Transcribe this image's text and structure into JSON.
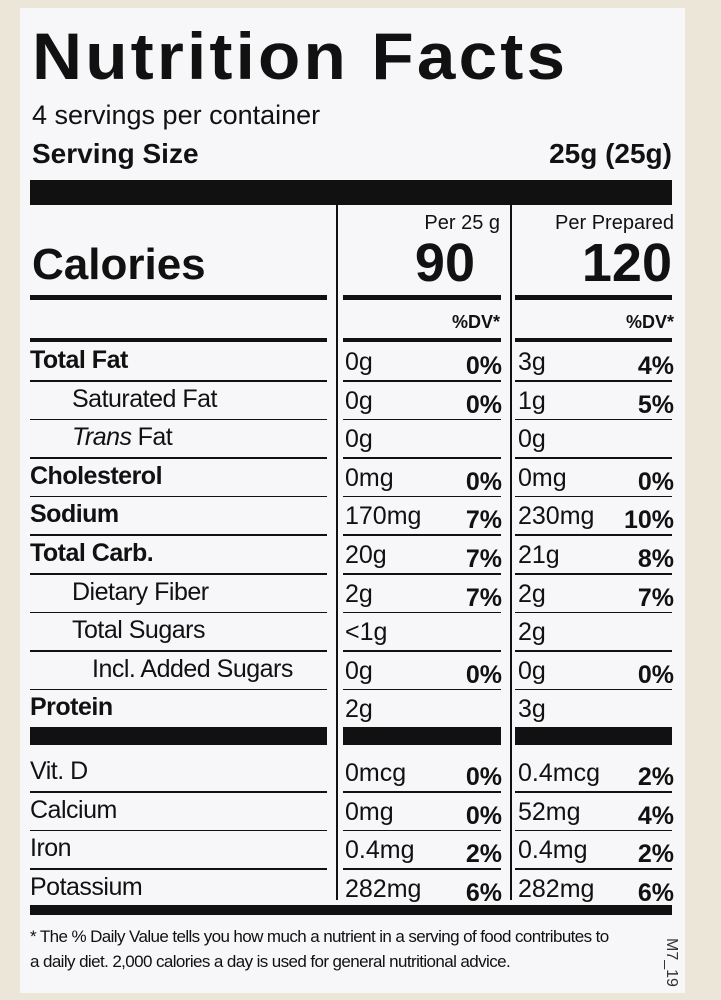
{
  "title": "Nutrition Facts",
  "servings": "4 servings per container",
  "serving_size": {
    "label": "Serving Size",
    "value": "25g (25g)"
  },
  "calories": {
    "label": "Calories",
    "col1_header": "Per 25 g",
    "col1_value": "90",
    "col2_header": "Per Prepared",
    "col2_value": "120"
  },
  "dv_header": [
    "%DV*",
    "%DV*"
  ],
  "rows": [
    {
      "name": "Total Fat",
      "bold": true,
      "indent": 0,
      "a1": "0g",
      "d1": "0%",
      "a2": "3g",
      "d2": "4%"
    },
    {
      "name": "Saturated Fat",
      "indent": 1,
      "a1": "0g",
      "d1": "0%",
      "a2": "1g",
      "d2": "5%"
    },
    {
      "name_em": "Trans",
      "name": "Fat",
      "indent": 1,
      "a1": "0g",
      "a2": "0g"
    },
    {
      "name": "Cholesterol",
      "bold": true,
      "indent": 0,
      "a1": "0mg",
      "d1": "0%",
      "a2": "0mg",
      "d2": "0%"
    },
    {
      "name": "Sodium",
      "bold": true,
      "indent": 0,
      "a1": "170mg",
      "d1": "7%",
      "a2": "230mg",
      "d2": "10%"
    },
    {
      "name": "Total Carb.",
      "bold": true,
      "indent": 0,
      "a1": "20g",
      "d1": "7%",
      "a2": "21g",
      "d2": "8%"
    },
    {
      "name": "Dietary Fiber",
      "indent": 1,
      "a1": "2g",
      "d1": "7%",
      "a2": "2g",
      "d2": "7%"
    },
    {
      "name": "Total Sugars",
      "indent": 1,
      "a1": "<1g",
      "a2": "2g"
    },
    {
      "name": "Incl. Added Sugars",
      "indent": 2,
      "a1": "0g",
      "d1": "0%",
      "a2": "0g",
      "d2": "0%"
    },
    {
      "name": "Protein",
      "bold": true,
      "indent": 0,
      "a1": "2g",
      "a2": "3g"
    }
  ],
  "vitamins": [
    {
      "name": "Vit. D",
      "a1": "0mcg",
      "d1": "0%",
      "a2": "0.4mcg",
      "d2": "2%"
    },
    {
      "name": "Calcium",
      "a1": "0mg",
      "d1": "0%",
      "a2": "52mg",
      "d2": "4%"
    },
    {
      "name": "Iron",
      "a1": "0.4mg",
      "d1": "2%",
      "a2": "0.4mg",
      "d2": "2%"
    },
    {
      "name": "Potassium",
      "a1": "282mg",
      "d1": "6%",
      "a2": "282mg",
      "d2": "6%"
    }
  ],
  "footnote": [
    "* The % Daily Value tells you how much a nutrient in  a serving of food contributes to",
    "a daily diet. 2,000 calories a day is used for general nutritional advice."
  ],
  "side_code": "M7_19"
}
